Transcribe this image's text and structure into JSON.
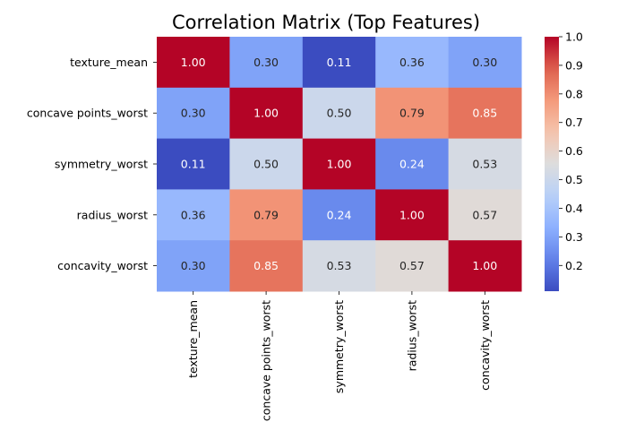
{
  "chart_data": {
    "type": "heatmap",
    "title": "Correlation Matrix (Top Features)",
    "row_labels": [
      "texture_mean",
      "concave points_worst",
      "symmetry_worst",
      "radius_worst",
      "concavity_worst"
    ],
    "col_labels": [
      "texture_mean",
      "concave points_worst",
      "symmetry_worst",
      "radius_worst",
      "concavity_worst"
    ],
    "values": [
      [
        1.0,
        0.3,
        0.11,
        0.36,
        0.3
      ],
      [
        0.3,
        1.0,
        0.5,
        0.79,
        0.85
      ],
      [
        0.11,
        0.5,
        1.0,
        0.24,
        0.53
      ],
      [
        0.36,
        0.79,
        0.24,
        1.0,
        0.57
      ],
      [
        0.3,
        0.85,
        0.53,
        0.57,
        1.0
      ]
    ],
    "value_format_decimals": 2,
    "colormap": "coolwarm",
    "colorbar": {
      "vmin": 0.11,
      "vmax": 1.0,
      "ticks": [
        "0.2",
        "0.3",
        "0.4",
        "0.5",
        "0.6",
        "0.7",
        "0.8",
        "0.9",
        "1.0"
      ]
    }
  }
}
